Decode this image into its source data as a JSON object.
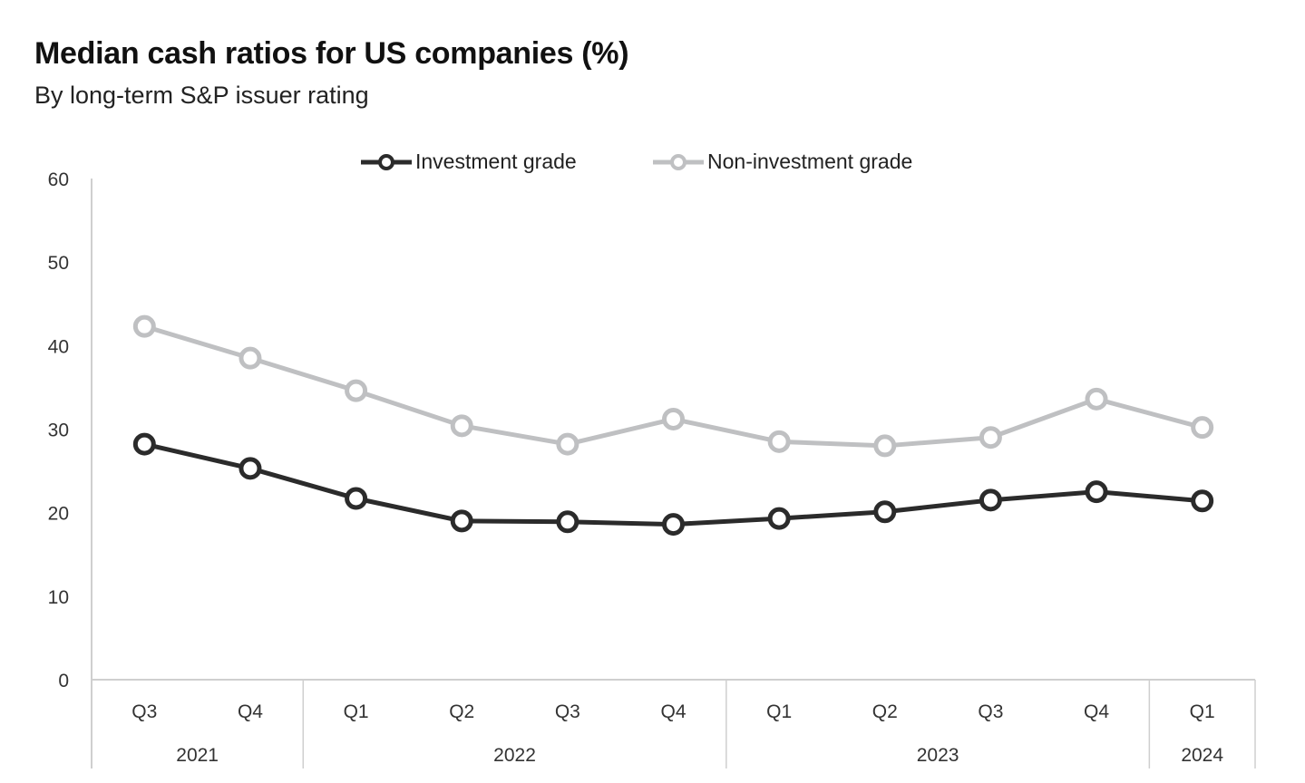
{
  "chart_data": {
    "type": "line",
    "title": "Median cash ratios for US companies (%)",
    "subtitle": "By long-term S&P issuer rating",
    "xlabel": "",
    "ylabel": "",
    "ylim": [
      0,
      60
    ],
    "yticks": [
      0,
      10,
      20,
      30,
      40,
      50,
      60
    ],
    "grid": false,
    "legend_position": "top-center",
    "categories": [
      "Q3",
      "Q4",
      "Q1",
      "Q2",
      "Q3",
      "Q4",
      "Q1",
      "Q2",
      "Q3",
      "Q4",
      "Q1"
    ],
    "year_groups": [
      {
        "label": "2021",
        "count": 2
      },
      {
        "label": "2022",
        "count": 4
      },
      {
        "label": "2023",
        "count": 4
      },
      {
        "label": "2024",
        "count": 1
      }
    ],
    "series": [
      {
        "name": "Investment grade",
        "color": "#2b2b2b",
        "values": [
          28.2,
          25.3,
          21.7,
          19.0,
          18.9,
          18.6,
          19.3,
          20.1,
          21.5,
          22.5,
          21.4
        ]
      },
      {
        "name": "Non-investment grade",
        "color": "#bfc0c2",
        "values": [
          42.3,
          38.5,
          34.6,
          30.4,
          28.2,
          31.2,
          28.5,
          28.0,
          29.0,
          33.6,
          30.2
        ]
      }
    ]
  }
}
